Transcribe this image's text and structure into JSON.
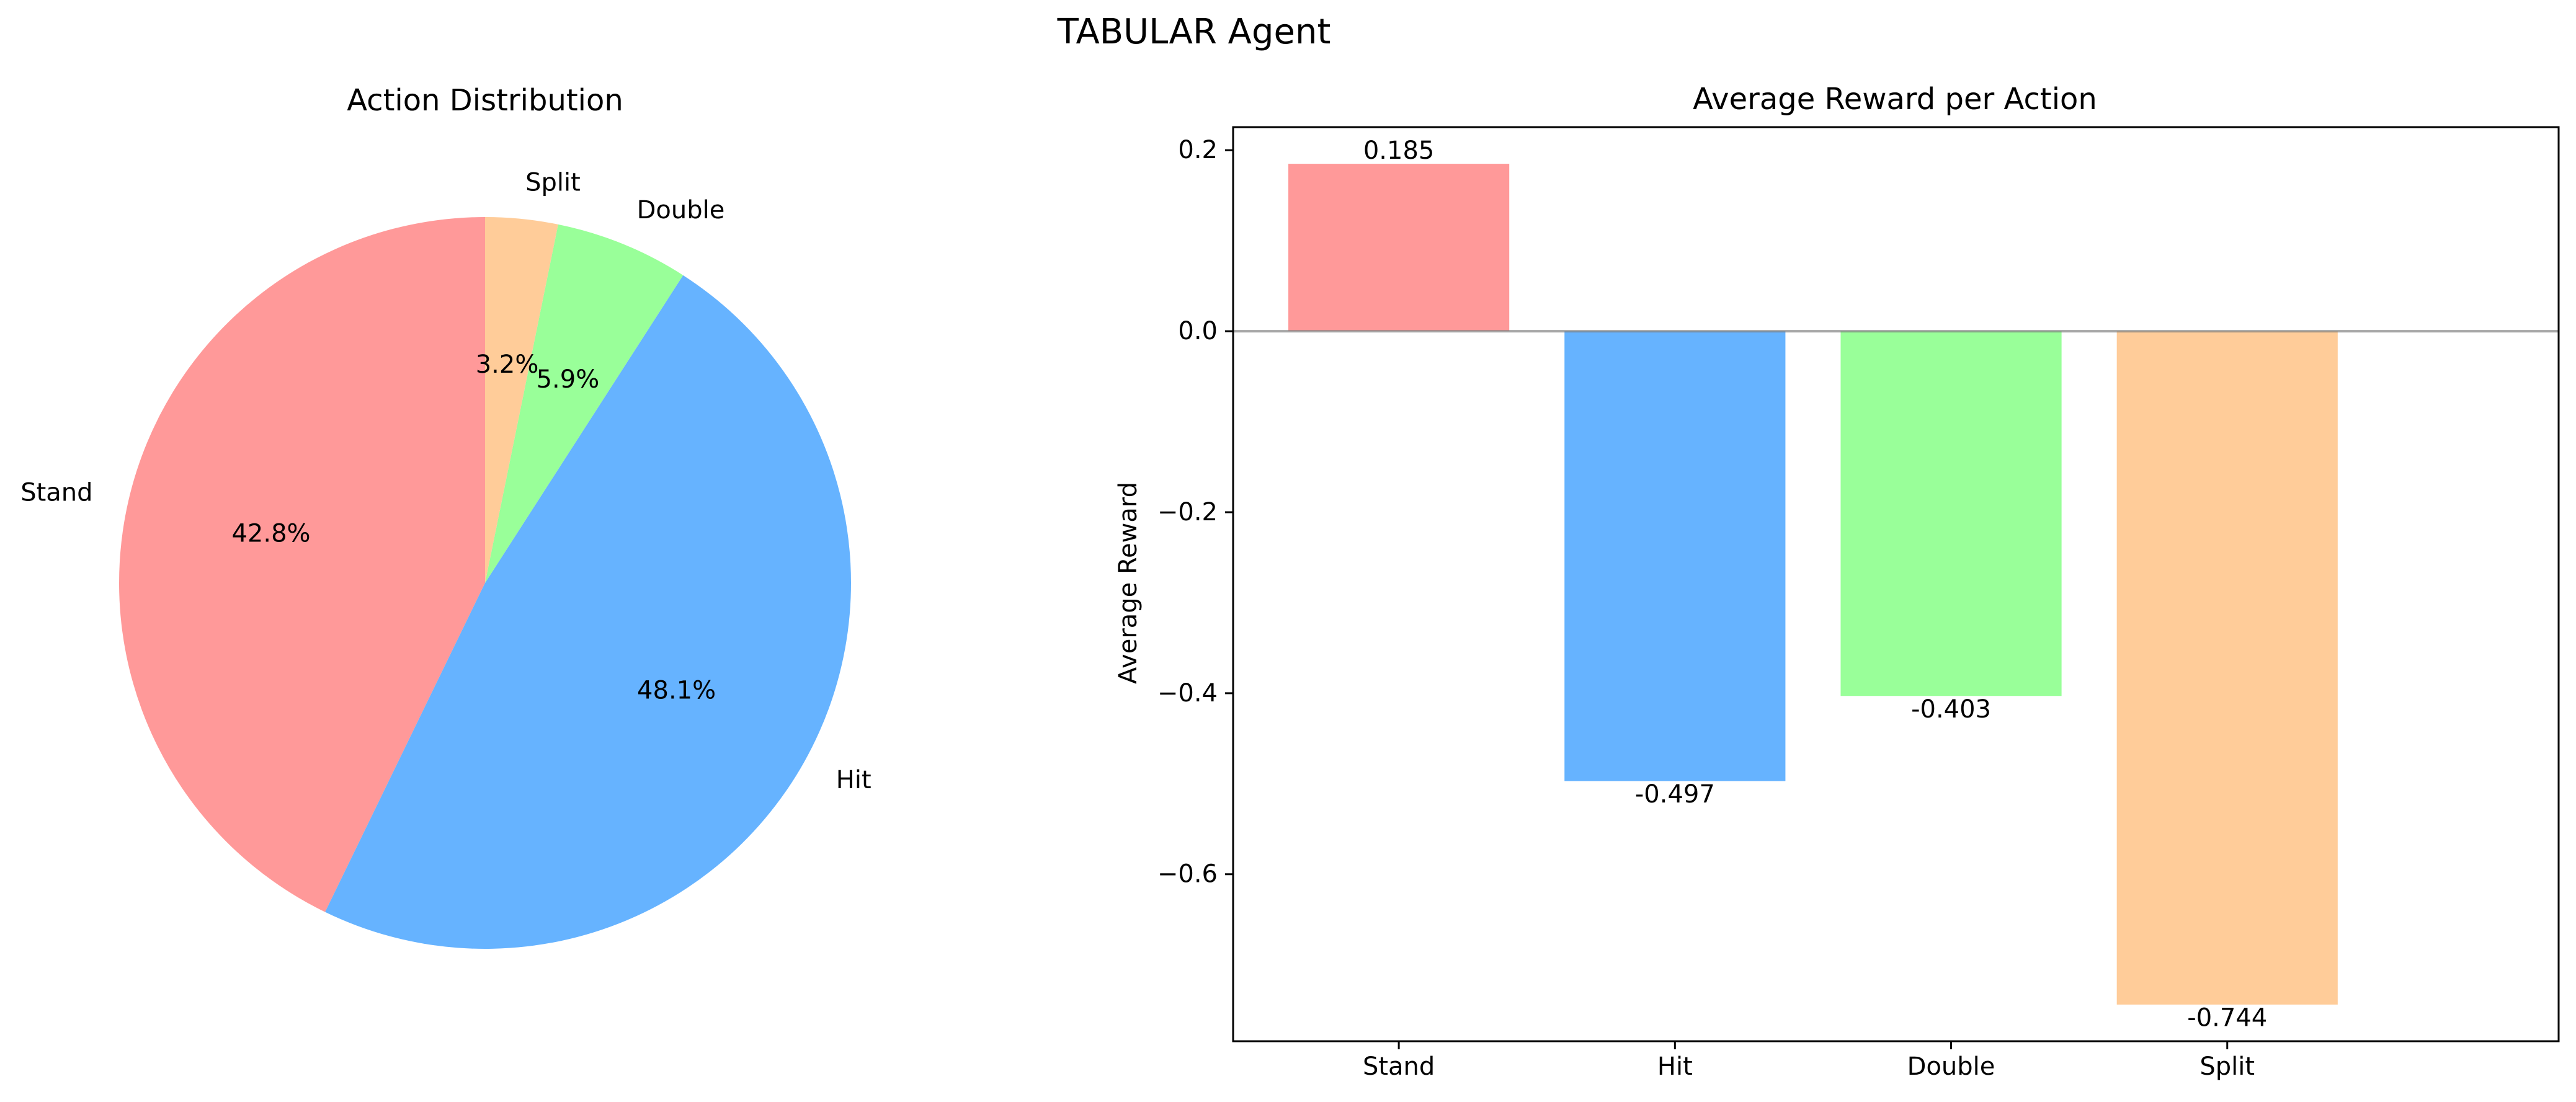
{
  "figure_title": "TABULAR Agent",
  "chart_data": [
    {
      "type": "pie",
      "title": "Action Distribution",
      "categories": [
        "Stand",
        "Hit",
        "Double",
        "Split"
      ],
      "values": [
        42.8,
        48.1,
        5.9,
        3.2
      ],
      "percent_labels": [
        "42.8%",
        "48.1%",
        "5.9%",
        "3.2%"
      ],
      "colors": [
        "#ff9999",
        "#66b3ff",
        "#99ff99",
        "#ffcc99"
      ],
      "start_angle": 90,
      "direction": "counterclockwise"
    },
    {
      "type": "bar",
      "title": "Average Reward per Action",
      "categories": [
        "Stand",
        "Hit",
        "Double",
        "Split"
      ],
      "values": [
        0.185,
        -0.497,
        -0.403,
        -0.744
      ],
      "value_labels": [
        "0.185",
        "-0.497",
        "-0.403",
        "-0.744"
      ],
      "colors": [
        "#ff9999",
        "#66b3ff",
        "#99ff99",
        "#ffcc99"
      ],
      "xlabel": "",
      "ylabel": "Average Reward",
      "ylim": [
        -0.7845,
        0.2255
      ],
      "yticks": [
        0.2,
        0.0,
        -0.2,
        -0.4,
        -0.6
      ],
      "ytick_labels": [
        "0.2",
        "0.0",
        "−0.2",
        "−0.4",
        "−0.6"
      ],
      "zero_line": true,
      "grid": false
    }
  ]
}
